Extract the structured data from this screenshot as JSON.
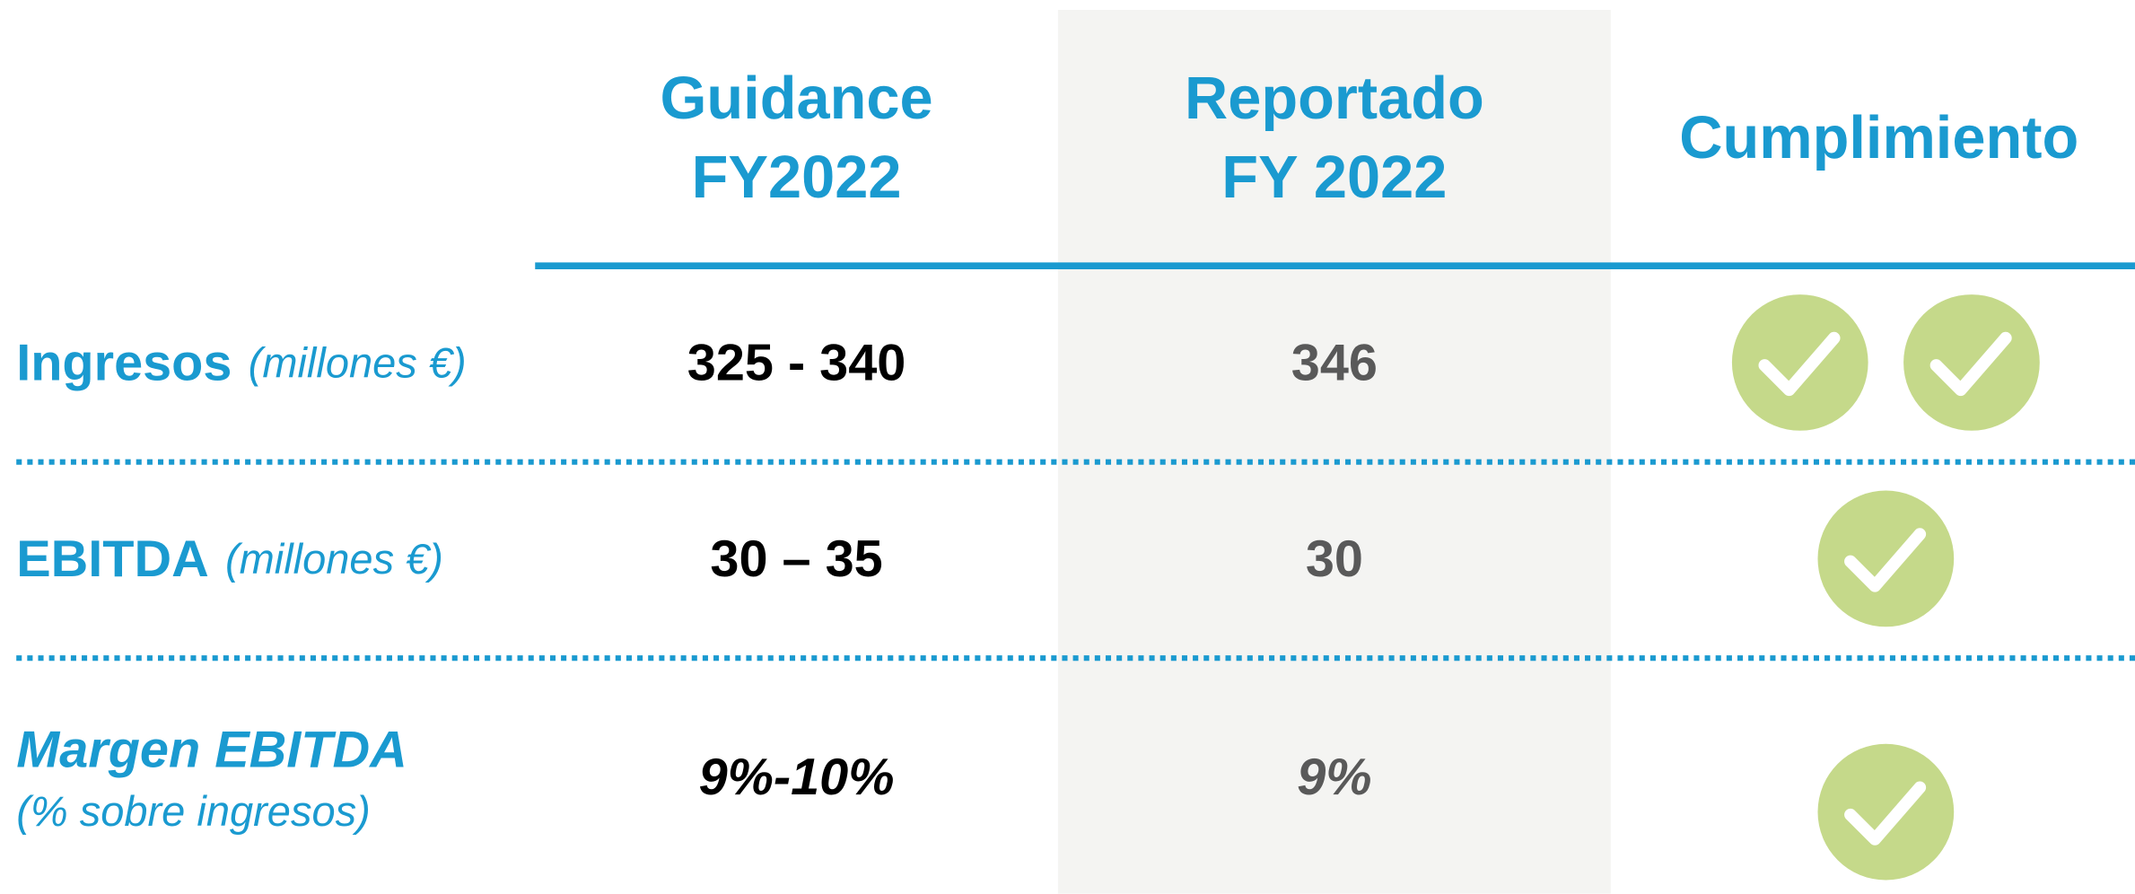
{
  "headers": [
    [
      "Guidance",
      "FY2022"
    ],
    [
      "Reportado",
      "FY 2022"
    ],
    [
      "Cumplimiento"
    ]
  ],
  "rows": [
    {
      "label": "Ingresos",
      "sublabel": "(millones €)",
      "guidance": "325 - 340",
      "reported": "346"
    },
    {
      "label": "EBITDA",
      "sublabel": "(millones €)",
      "guidance": "30 – 35",
      "reported": "30"
    },
    {
      "label": "Margen EBITDA",
      "sublabel": "(% sobre ingresos)",
      "guidance": "9%-10%",
      "reported": "9%"
    }
  ]
}
